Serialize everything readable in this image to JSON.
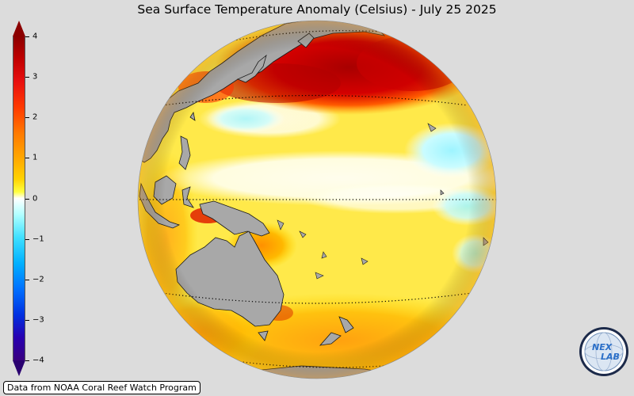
{
  "title": "Sea Surface Temperature Anomaly (Celsius) - July 25 2025",
  "colorbar": {
    "min": -4,
    "max": 4,
    "tick_labels": [
      "4",
      "3",
      "2",
      "1",
      "0",
      "−1",
      "−2",
      "−3",
      "−4"
    ],
    "extend": "both",
    "colors_high_to_low": [
      "#8b0000",
      "#ff3a00",
      "#ffaa00",
      "#ffff40",
      "#ffffff",
      "#40e0ff",
      "#0070ff",
      "#3a0080"
    ]
  },
  "map": {
    "projection": "orthographic",
    "center": "western Pacific Ocean",
    "land_color": "#a9a9a9",
    "graticule": "dotted latitude lines",
    "features": [
      "warm anomaly north Pacific",
      "cool anomaly eastern tropical Pacific",
      "Australia",
      "New Zealand",
      "New Guinea",
      "Japan"
    ]
  },
  "credit": "Data from NOAA Coral Reef Watch Program",
  "logo": {
    "text_top": "NEX",
    "text_bottom": "LAB",
    "icon": "nexlab-globe-logo"
  }
}
